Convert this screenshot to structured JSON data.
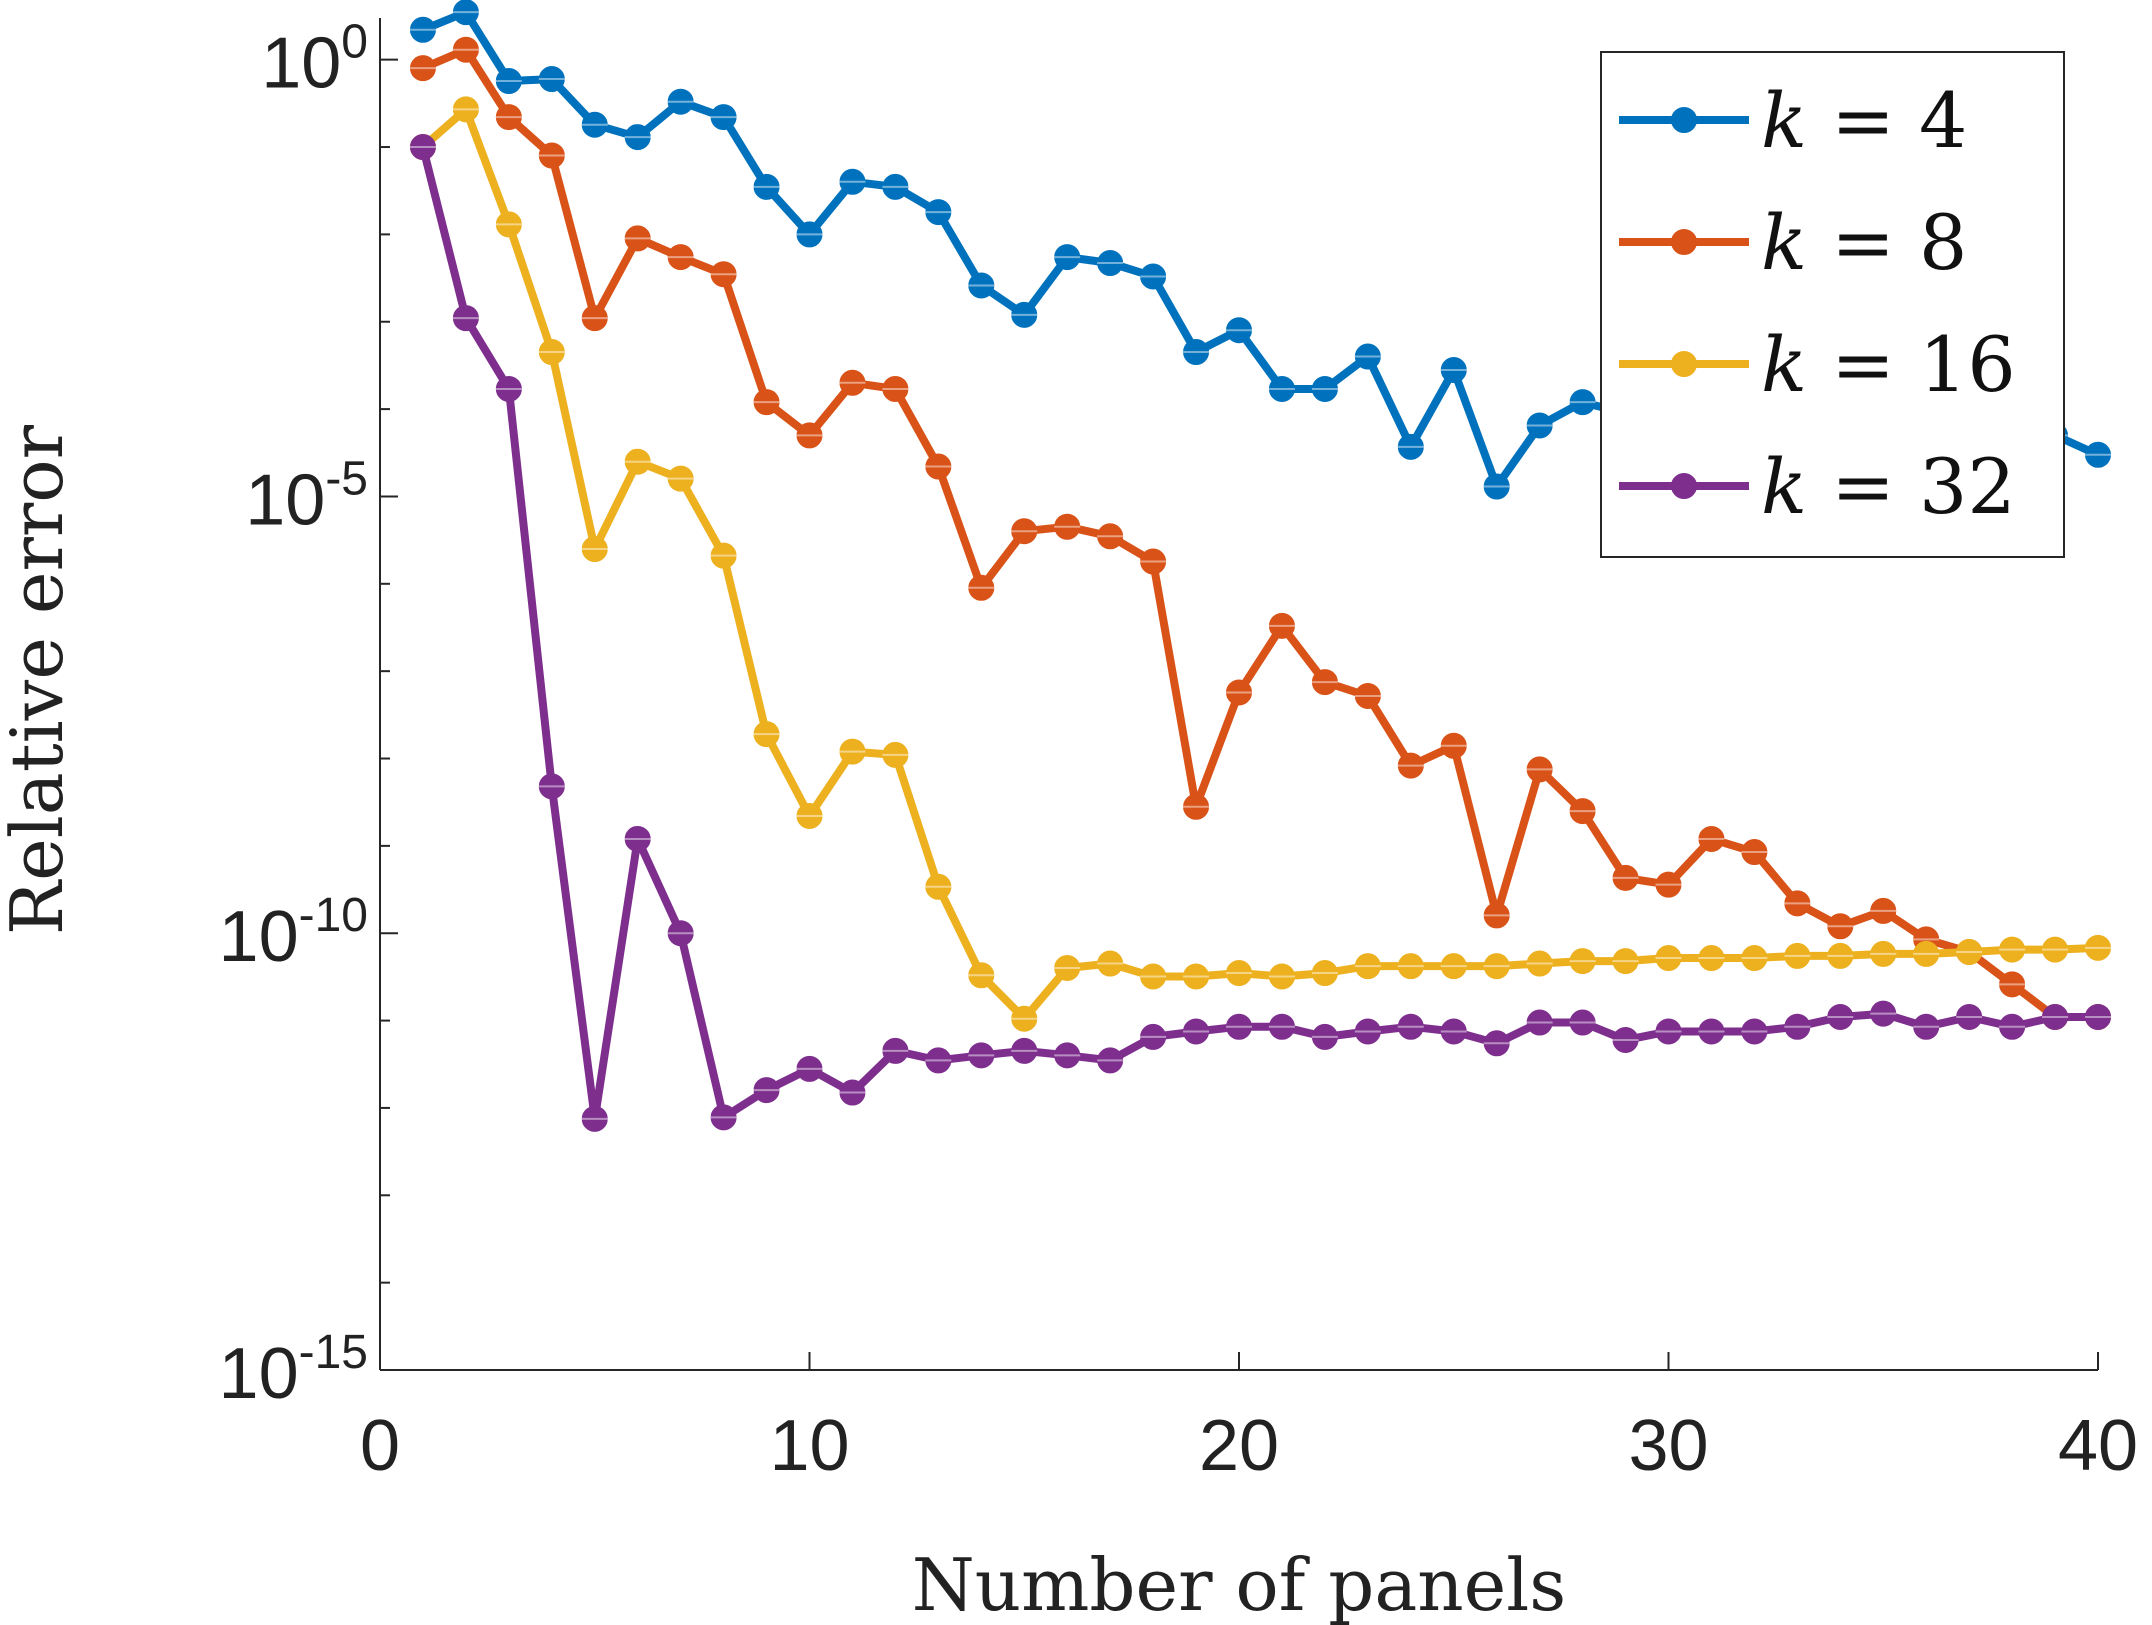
{
  "chart_data": {
    "type": "line",
    "title": "",
    "xlabel": "Number of panels",
    "ylabel": "Relative error",
    "xlim": [
      0,
      40
    ],
    "ylim": [
      1e-15,
      3
    ],
    "yscale": "log",
    "grid": false,
    "legend_position": "top-right",
    "x_ticks": [
      {
        "value": 0,
        "label": "0"
      },
      {
        "value": 10,
        "label": "10"
      },
      {
        "value": 20,
        "label": "20"
      },
      {
        "value": 30,
        "label": "30"
      },
      {
        "value": 40,
        "label": "40"
      }
    ],
    "y_ticks": [
      {
        "value": 1,
        "base": "10",
        "exp": "0"
      },
      {
        "value": 1e-05,
        "base": "10",
        "exp": "-5"
      },
      {
        "value": 1e-10,
        "base": "10",
        "exp": "-10"
      },
      {
        "value": 1e-15,
        "base": "10",
        "exp": "-15"
      }
    ],
    "x": [
      1,
      2,
      3,
      4,
      5,
      6,
      7,
      8,
      9,
      10,
      11,
      12,
      13,
      14,
      15,
      16,
      17,
      18,
      19,
      20,
      21,
      22,
      23,
      24,
      25,
      26,
      27,
      28,
      29,
      30,
      31,
      32,
      33,
      34,
      35,
      36,
      37,
      38,
      39,
      40
    ],
    "series": [
      {
        "name": "k = 4",
        "legend_var": "k",
        "legend_rest": " = 4",
        "color": "#0072BD",
        "values": [
          2.2,
          3.5,
          0.57,
          0.6,
          0.18,
          0.13,
          0.33,
          0.22,
          0.035,
          0.01,
          0.04,
          0.035,
          0.018,
          0.0026,
          0.0012,
          0.0055,
          0.0047,
          0.0033,
          0.00045,
          0.0008,
          0.00017,
          0.00017,
          0.0004,
          3.7e-05,
          0.00028,
          1.3e-05,
          6.5e-05,
          0.00012,
          9e-05,
          9e-05,
          8e-05,
          8e-05,
          7e-05,
          6e-05,
          6e-05,
          6e-05,
          5e-05,
          5e-05,
          5e-05,
          3e-05
        ]
      },
      {
        "name": "k = 8",
        "legend_var": "k",
        "legend_rest": " = 8",
        "color": "#D95319",
        "values": [
          0.8,
          1.3,
          0.22,
          0.08,
          0.0011,
          0.009,
          0.0055,
          0.0035,
          0.00012,
          5e-05,
          0.0002,
          0.00017,
          2.2e-05,
          9e-07,
          4e-06,
          4.5e-06,
          3.5e-06,
          1.8e-06,
          2.8e-09,
          5.7e-08,
          3.3e-07,
          7.5e-08,
          5.2e-08,
          8.3e-09,
          1.4e-08,
          1.6e-10,
          7.5e-09,
          2.5e-09,
          4.3e-10,
          3.6e-10,
          1.2e-09,
          8.5e-10,
          2.2e-10,
          1.2e-10,
          1.8e-10,
          8.5e-11,
          6.1e-11,
          2.6e-11,
          1.1e-11,
          1.1e-11
        ]
      },
      {
        "name": "k = 16",
        "legend_var": "k",
        "legend_rest": " = 16",
        "color": "#EDB120",
        "values": [
          0.1,
          0.27,
          0.013,
          0.00045,
          2.5e-06,
          2.5e-05,
          1.6e-05,
          2.1e-06,
          1.9e-08,
          2.2e-09,
          1.2e-08,
          1.1e-08,
          3.4e-10,
          3.3e-11,
          1.05e-11,
          4e-11,
          4.5e-11,
          3.2e-11,
          3.2e-11,
          3.5e-11,
          3.2e-11,
          3.5e-11,
          4.2e-11,
          4.2e-11,
          4.2e-11,
          4.2e-11,
          4.5e-11,
          4.8e-11,
          4.8e-11,
          5.2e-11,
          5.2e-11,
          5.2e-11,
          5.5e-11,
          5.5e-11,
          5.8e-11,
          5.8e-11,
          6.1e-11,
          6.5e-11,
          6.5e-11,
          6.8e-11
        ]
      },
      {
        "name": "k = 32",
        "legend_var": "k",
        "legend_rest": " = 32",
        "color": "#7E2F8E",
        "values": [
          0.1,
          0.0011,
          0.00017,
          4.8e-09,
          7.5e-13,
          1.2e-09,
          1e-10,
          7.8e-13,
          1.6e-12,
          2.8e-12,
          1.5e-12,
          4.5e-12,
          3.5e-12,
          4e-12,
          4.5e-12,
          4e-12,
          3.5e-12,
          6.5e-12,
          7.5e-12,
          8.5e-12,
          8.5e-12,
          6.5e-12,
          7.5e-12,
          8.5e-12,
          7.5e-12,
          5.5e-12,
          9.5e-12,
          9.5e-12,
          6e-12,
          7.5e-12,
          7.5e-12,
          7.5e-12,
          8.5e-12,
          1.1e-11,
          1.2e-11,
          8.5e-12,
          1.1e-11,
          8.5e-12,
          1.1e-11,
          1.1e-11
        ]
      }
    ]
  }
}
